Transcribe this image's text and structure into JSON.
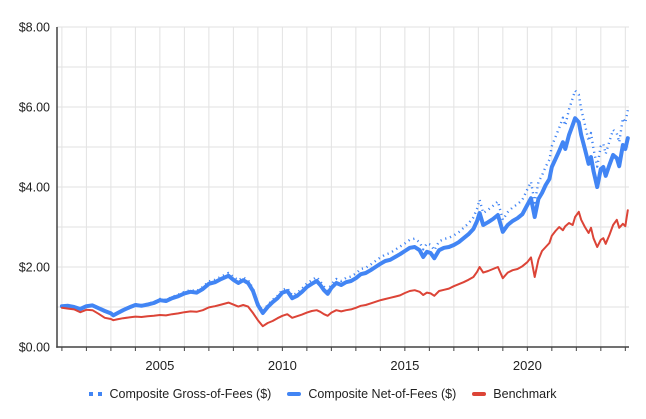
{
  "chart_data": {
    "type": "line",
    "title": "",
    "xlabel": "",
    "ylabel": "",
    "legend_position": "bottom",
    "grid": "on",
    "y_axis": {
      "range": [
        0,
        8
      ],
      "tick_values": [
        0,
        2,
        4,
        6,
        8
      ],
      "tick_labels": [
        "$0.00",
        "$2.00",
        "$4.00",
        "$6.00",
        "$8.00"
      ],
      "gridline_values": [
        1,
        2,
        3,
        4,
        5,
        6,
        7,
        8
      ]
    },
    "x_axis": {
      "range": [
        2000.8,
        2024.15
      ],
      "tick_years": [
        2005,
        2010,
        2015,
        2020
      ],
      "tick_labels": [
        "2005",
        "2010",
        "2015",
        "2020"
      ],
      "gridline_years": [
        2001,
        2002,
        2003,
        2004,
        2005,
        2006,
        2007,
        2008,
        2009,
        2010,
        2011,
        2012,
        2013,
        2014,
        2015,
        2016,
        2017,
        2018,
        2019,
        2020,
        2021,
        2022,
        2023,
        2024
      ]
    },
    "x": [
      2001.0,
      2001.25,
      2001.5,
      2001.75,
      2002.0,
      2002.25,
      2002.5,
      2002.75,
      2003.0,
      2003.1,
      2003.25,
      2003.5,
      2003.75,
      2004.0,
      2004.25,
      2004.5,
      2004.75,
      2005.0,
      2005.25,
      2005.5,
      2005.75,
      2006.0,
      2006.25,
      2006.5,
      2006.75,
      2007.0,
      2007.25,
      2007.5,
      2007.8,
      2008.0,
      2008.2,
      2008.4,
      2008.6,
      2008.8,
      2009.0,
      2009.2,
      2009.4,
      2009.6,
      2009.8,
      2010.0,
      2010.2,
      2010.4,
      2010.6,
      2010.8,
      2011.0,
      2011.2,
      2011.4,
      2011.55,
      2011.7,
      2011.85,
      2012.0,
      2012.2,
      2012.4,
      2012.6,
      2012.8,
      2013.0,
      2013.2,
      2013.4,
      2013.6,
      2013.8,
      2014.0,
      2014.2,
      2014.4,
      2014.6,
      2014.8,
      2015.0,
      2015.2,
      2015.4,
      2015.6,
      2015.75,
      2015.9,
      2016.05,
      2016.2,
      2016.4,
      2016.6,
      2016.8,
      2017.0,
      2017.2,
      2017.4,
      2017.6,
      2017.8,
      2017.95,
      2018.05,
      2018.2,
      2018.4,
      2018.6,
      2018.8,
      2019.0,
      2019.2,
      2019.4,
      2019.6,
      2019.8,
      2020.0,
      2020.15,
      2020.3,
      2020.45,
      2020.6,
      2020.75,
      2020.9,
      2021.0,
      2021.15,
      2021.3,
      2021.45,
      2021.55,
      2021.7,
      2021.85,
      2021.95,
      2022.1,
      2022.2,
      2022.35,
      2022.5,
      2022.6,
      2022.7,
      2022.85,
      2023.0,
      2023.1,
      2023.2,
      2023.35,
      2023.5,
      2023.65,
      2023.75,
      2023.9,
      2024.0,
      2024.1
    ],
    "series": [
      {
        "name": "Composite Gross-of-Fees ($)",
        "color": "#4285F4",
        "style": "dotted",
        "width": 2.4,
        "values": [
          1.02,
          1.03,
          1.0,
          0.95,
          1.03,
          1.05,
          0.98,
          0.91,
          0.85,
          0.8,
          0.85,
          0.93,
          1.01,
          1.07,
          1.05,
          1.08,
          1.12,
          1.2,
          1.18,
          1.25,
          1.31,
          1.38,
          1.42,
          1.4,
          1.5,
          1.64,
          1.68,
          1.76,
          1.85,
          1.75,
          1.67,
          1.74,
          1.67,
          1.46,
          1.1,
          0.89,
          1.05,
          1.18,
          1.28,
          1.43,
          1.47,
          1.29,
          1.35,
          1.46,
          1.59,
          1.67,
          1.75,
          1.64,
          1.51,
          1.41,
          1.57,
          1.7,
          1.65,
          1.73,
          1.76,
          1.84,
          1.95,
          1.98,
          2.06,
          2.15,
          2.24,
          2.31,
          2.35,
          2.43,
          2.51,
          2.59,
          2.68,
          2.71,
          2.62,
          2.44,
          2.59,
          2.56,
          2.42,
          2.64,
          2.7,
          2.73,
          2.79,
          2.87,
          2.98,
          3.09,
          3.24,
          3.46,
          3.68,
          3.35,
          3.43,
          3.53,
          3.64,
          3.18,
          3.37,
          3.49,
          3.57,
          3.68,
          3.94,
          4.13,
          3.61,
          4.12,
          4.29,
          4.51,
          4.68,
          5.02,
          5.25,
          5.48,
          5.73,
          5.54,
          5.94,
          6.22,
          6.41,
          6.31,
          5.95,
          5.56,
          5.15,
          5.35,
          4.95,
          4.51,
          5.02,
          5.08,
          4.83,
          5.14,
          5.43,
          5.34,
          5.12,
          5.72,
          5.61,
          5.92
        ]
      },
      {
        "name": "Composite Net-of-Fees ($)",
        "color": "#4285F4",
        "style": "solid",
        "width": 4,
        "values": [
          1.02,
          1.03,
          1.0,
          0.95,
          1.02,
          1.04,
          0.97,
          0.9,
          0.84,
          0.79,
          0.84,
          0.92,
          0.99,
          1.05,
          1.03,
          1.06,
          1.1,
          1.17,
          1.15,
          1.22,
          1.27,
          1.34,
          1.38,
          1.36,
          1.45,
          1.58,
          1.62,
          1.7,
          1.78,
          1.68,
          1.6,
          1.67,
          1.6,
          1.4,
          1.05,
          0.85,
          1.0,
          1.12,
          1.22,
          1.36,
          1.4,
          1.22,
          1.28,
          1.38,
          1.5,
          1.58,
          1.65,
          1.55,
          1.42,
          1.33,
          1.48,
          1.6,
          1.55,
          1.62,
          1.65,
          1.72,
          1.82,
          1.85,
          1.92,
          2.0,
          2.08,
          2.15,
          2.18,
          2.25,
          2.32,
          2.4,
          2.48,
          2.5,
          2.42,
          2.25,
          2.38,
          2.35,
          2.22,
          2.42,
          2.48,
          2.5,
          2.55,
          2.62,
          2.72,
          2.82,
          2.95,
          3.15,
          3.35,
          3.05,
          3.12,
          3.2,
          3.3,
          2.88,
          3.05,
          3.15,
          3.22,
          3.32,
          3.55,
          3.72,
          3.25,
          3.7,
          3.85,
          4.05,
          4.2,
          4.5,
          4.7,
          4.9,
          5.12,
          4.95,
          5.3,
          5.55,
          5.72,
          5.62,
          5.3,
          4.95,
          4.58,
          4.75,
          4.4,
          4.0,
          4.45,
          4.5,
          4.28,
          4.55,
          4.8,
          4.72,
          4.52,
          5.05,
          4.95,
          5.22
        ]
      },
      {
        "name": "Benchmark",
        "color": "#DC4437",
        "style": "solid",
        "width": 2,
        "values": [
          0.98,
          0.96,
          0.94,
          0.87,
          0.93,
          0.92,
          0.83,
          0.73,
          0.7,
          0.67,
          0.69,
          0.72,
          0.74,
          0.76,
          0.75,
          0.77,
          0.78,
          0.8,
          0.79,
          0.82,
          0.84,
          0.87,
          0.89,
          0.88,
          0.92,
          0.99,
          1.02,
          1.06,
          1.11,
          1.06,
          1.01,
          1.05,
          1.01,
          0.85,
          0.67,
          0.52,
          0.6,
          0.65,
          0.72,
          0.78,
          0.82,
          0.73,
          0.77,
          0.81,
          0.86,
          0.9,
          0.92,
          0.88,
          0.82,
          0.78,
          0.86,
          0.92,
          0.89,
          0.92,
          0.94,
          0.98,
          1.03,
          1.05,
          1.09,
          1.13,
          1.17,
          1.2,
          1.23,
          1.26,
          1.29,
          1.35,
          1.4,
          1.42,
          1.38,
          1.3,
          1.36,
          1.34,
          1.28,
          1.4,
          1.43,
          1.46,
          1.52,
          1.57,
          1.62,
          1.68,
          1.75,
          1.88,
          2.0,
          1.86,
          1.9,
          1.95,
          2.0,
          1.72,
          1.86,
          1.92,
          1.95,
          2.02,
          2.12,
          2.24,
          1.75,
          2.18,
          2.4,
          2.5,
          2.6,
          2.78,
          2.9,
          3.0,
          2.92,
          3.02,
          3.1,
          3.05,
          3.25,
          3.38,
          3.18,
          3.0,
          2.85,
          2.98,
          2.72,
          2.5,
          2.68,
          2.72,
          2.58,
          2.8,
          3.05,
          3.18,
          2.98,
          3.08,
          3.02,
          3.42
        ]
      }
    ],
    "colors": {
      "composite_blue": "#4285F4",
      "benchmark_red": "#DC4437",
      "gridline": "#e2e2e2",
      "axis": "#424242",
      "label_text": "#1f1f1f"
    }
  }
}
